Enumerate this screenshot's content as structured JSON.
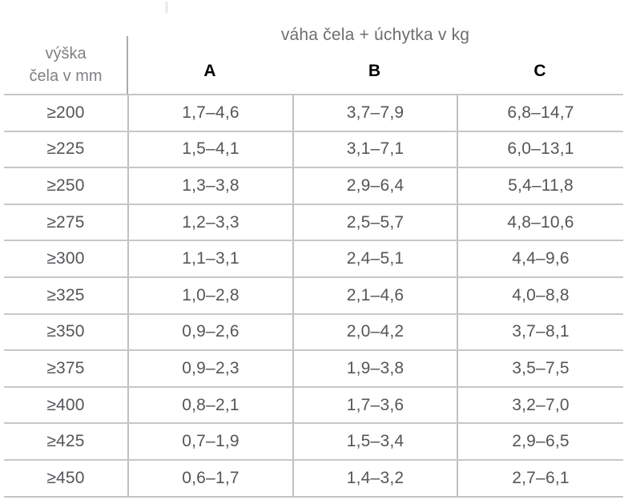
{
  "table": {
    "title": "váha čela + úchytka v kg",
    "row_header": {
      "line1": "výška",
      "line2": "čela v mm"
    },
    "columns": {
      "a": "A",
      "b": "B",
      "c": "C"
    },
    "rows": [
      {
        "height": "≥200",
        "a": "1,7–4,6",
        "b": "3,7–7,9",
        "c": "6,8–14,7"
      },
      {
        "height": "≥225",
        "a": "1,5–4,1",
        "b": "3,1–7,1",
        "c": "6,0–13,1"
      },
      {
        "height": "≥250",
        "a": "1,3–3,8",
        "b": "2,9–6,4",
        "c": "5,4–11,8"
      },
      {
        "height": "≥275",
        "a": "1,2–3,3",
        "b": "2,5–5,7",
        "c": "4,8–10,6"
      },
      {
        "height": "≥300",
        "a": "1,1–3,1",
        "b": "2,4–5,1",
        "c": "4,4–9,6"
      },
      {
        "height": "≥325",
        "a": "1,0–2,8",
        "b": "2,1–4,6",
        "c": "4,0–8,8"
      },
      {
        "height": "≥350",
        "a": "0,9–2,6",
        "b": "2,0–4,2",
        "c": "3,7–8,1"
      },
      {
        "height": "≥375",
        "a": "0,9–2,3",
        "b": "1,9–3,8",
        "c": "3,5–7,5"
      },
      {
        "height": "≥400",
        "a": "0,8–2,1",
        "b": "1,7–3,6",
        "c": "3,2–7,0"
      },
      {
        "height": "≥425",
        "a": "0,7–1,9",
        "b": "1,5–3,4",
        "c": "2,9–6,5"
      },
      {
        "height": "≥450",
        "a": "0,6–1,7",
        "b": "1,4–3,2",
        "c": "2,7–6,1"
      }
    ],
    "colors": {
      "grid_line": "#c6c7c7",
      "header_divider": "#aaabad",
      "title_text": "#6d6e70",
      "row_header_text": "#808285",
      "column_letter": "#000000",
      "cell_text": "#55565a"
    }
  }
}
